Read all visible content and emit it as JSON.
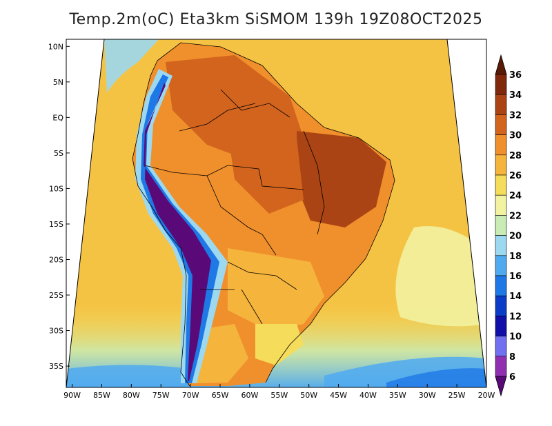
{
  "title": "Temp.2m(oC) Eta3km SiSMOM 139h 19Z08OCT2025",
  "axes": {
    "lat_labels": [
      "10N",
      "5N",
      "EQ",
      "5S",
      "10S",
      "15S",
      "20S",
      "25S",
      "30S",
      "35S"
    ],
    "lat_values": [
      10,
      5,
      0,
      -5,
      -10,
      -15,
      -20,
      -25,
      -30,
      -35
    ],
    "lon_labels": [
      "90W",
      "85W",
      "80W",
      "75W",
      "70W",
      "65W",
      "60W",
      "55W",
      "50W",
      "45W",
      "40W",
      "35W",
      "30W",
      "25W",
      "20W"
    ],
    "lon_values": [
      -90,
      -85,
      -80,
      -75,
      -70,
      -65,
      -60,
      -55,
      -50,
      -45,
      -40,
      -35,
      -30,
      -25,
      -20
    ],
    "lat_range": [
      -38,
      11
    ],
    "lon_range": [
      -91,
      -20
    ]
  },
  "colorbar": {
    "labels": [
      "6",
      "8",
      "10",
      "12",
      "14",
      "16",
      "18",
      "20",
      "22",
      "24",
      "26",
      "28",
      "30",
      "32",
      "34",
      "36"
    ],
    "levels": [
      6,
      8,
      10,
      12,
      14,
      16,
      18,
      20,
      22,
      24,
      26,
      28,
      30,
      32,
      34,
      36
    ],
    "colors": [
      "#5a0a78",
      "#9030b0",
      "#7070f0",
      "#1010a8",
      "#0a3cc8",
      "#1e78e6",
      "#50aaf0",
      "#9cd8f0",
      "#c8ecb4",
      "#f2f2a0",
      "#f5dc5a",
      "#f5b43c",
      "#f0902c",
      "#d2641e",
      "#aa4414",
      "#80280c",
      "#5a1a08"
    ],
    "under_color": "#5a0a78",
    "over_color": "#5a1a08"
  },
  "colors": {
    "ocean": "#f5c343",
    "frame": "#000000"
  }
}
